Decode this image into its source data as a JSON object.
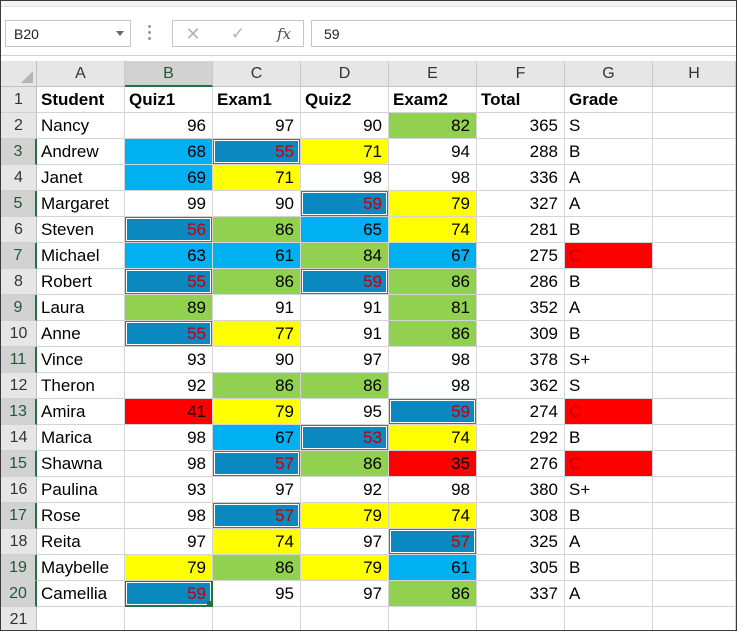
{
  "formula_bar": {
    "name_box": "B20",
    "cancel_glyph": "✕",
    "enter_glyph": "✓",
    "fx_glyph": "fx",
    "formula": "59"
  },
  "colors": {
    "green": "#92d050",
    "lightblue": "#00b0f0",
    "darkblue": "#0a88c0",
    "yellow": "#ffff00",
    "red": "#ff0000",
    "darkred_text": "#c00000",
    "black_text": "#000000"
  },
  "columns": [
    "A",
    "B",
    "C",
    "D",
    "E",
    "F",
    "G",
    "H"
  ],
  "selected_column": "B",
  "selected_row": 20,
  "headers": [
    "Student",
    "Quiz1",
    "Exam1",
    "Quiz2",
    "Exam2",
    "Total",
    "Grade"
  ],
  "rows": [
    {
      "name": "Nancy",
      "scores": [
        96,
        97,
        90,
        82
      ],
      "total": 365,
      "grade": "S"
    },
    {
      "name": "Andrew",
      "scores": [
        68,
        55,
        71,
        94
      ],
      "total": 288,
      "grade": "B"
    },
    {
      "name": "Janet",
      "scores": [
        69,
        71,
        98,
        98
      ],
      "total": 336,
      "grade": "A"
    },
    {
      "name": "Margaret",
      "scores": [
        99,
        90,
        59,
        79
      ],
      "total": 327,
      "grade": "A"
    },
    {
      "name": "Steven",
      "scores": [
        56,
        86,
        65,
        74
      ],
      "total": 281,
      "grade": "B"
    },
    {
      "name": "Michael",
      "scores": [
        63,
        61,
        84,
        67
      ],
      "total": 275,
      "grade": "C"
    },
    {
      "name": "Robert",
      "scores": [
        55,
        86,
        59,
        86
      ],
      "total": 286,
      "grade": "B"
    },
    {
      "name": "Laura",
      "scores": [
        89,
        91,
        91,
        81
      ],
      "total": 352,
      "grade": "A"
    },
    {
      "name": "Anne",
      "scores": [
        55,
        77,
        91,
        86
      ],
      "total": 309,
      "grade": "B"
    },
    {
      "name": "Vince",
      "scores": [
        93,
        90,
        97,
        98
      ],
      "total": 378,
      "grade": "S+"
    },
    {
      "name": "Theron",
      "scores": [
        92,
        86,
        86,
        98
      ],
      "total": 362,
      "grade": "S"
    },
    {
      "name": "Amira",
      "scores": [
        41,
        79,
        95,
        59
      ],
      "total": 274,
      "grade": "C"
    },
    {
      "name": "Marica",
      "scores": [
        98,
        67,
        53,
        74
      ],
      "total": 292,
      "grade": "B"
    },
    {
      "name": "Shawna",
      "scores": [
        98,
        57,
        86,
        35
      ],
      "total": 276,
      "grade": "C"
    },
    {
      "name": "Paulina",
      "scores": [
        93,
        97,
        92,
        98
      ],
      "total": 380,
      "grade": "S+"
    },
    {
      "name": "Rose",
      "scores": [
        98,
        57,
        79,
        74
      ],
      "total": 308,
      "grade": "B"
    },
    {
      "name": "Reita",
      "scores": [
        97,
        74,
        97,
        57
      ],
      "total": 325,
      "grade": "A"
    },
    {
      "name": "Maybelle",
      "scores": [
        79,
        86,
        79,
        61
      ],
      "total": 305,
      "grade": "B"
    },
    {
      "name": "Camellia",
      "scores": [
        59,
        95,
        97,
        86
      ],
      "total": 337,
      "grade": "A"
    }
  ]
}
